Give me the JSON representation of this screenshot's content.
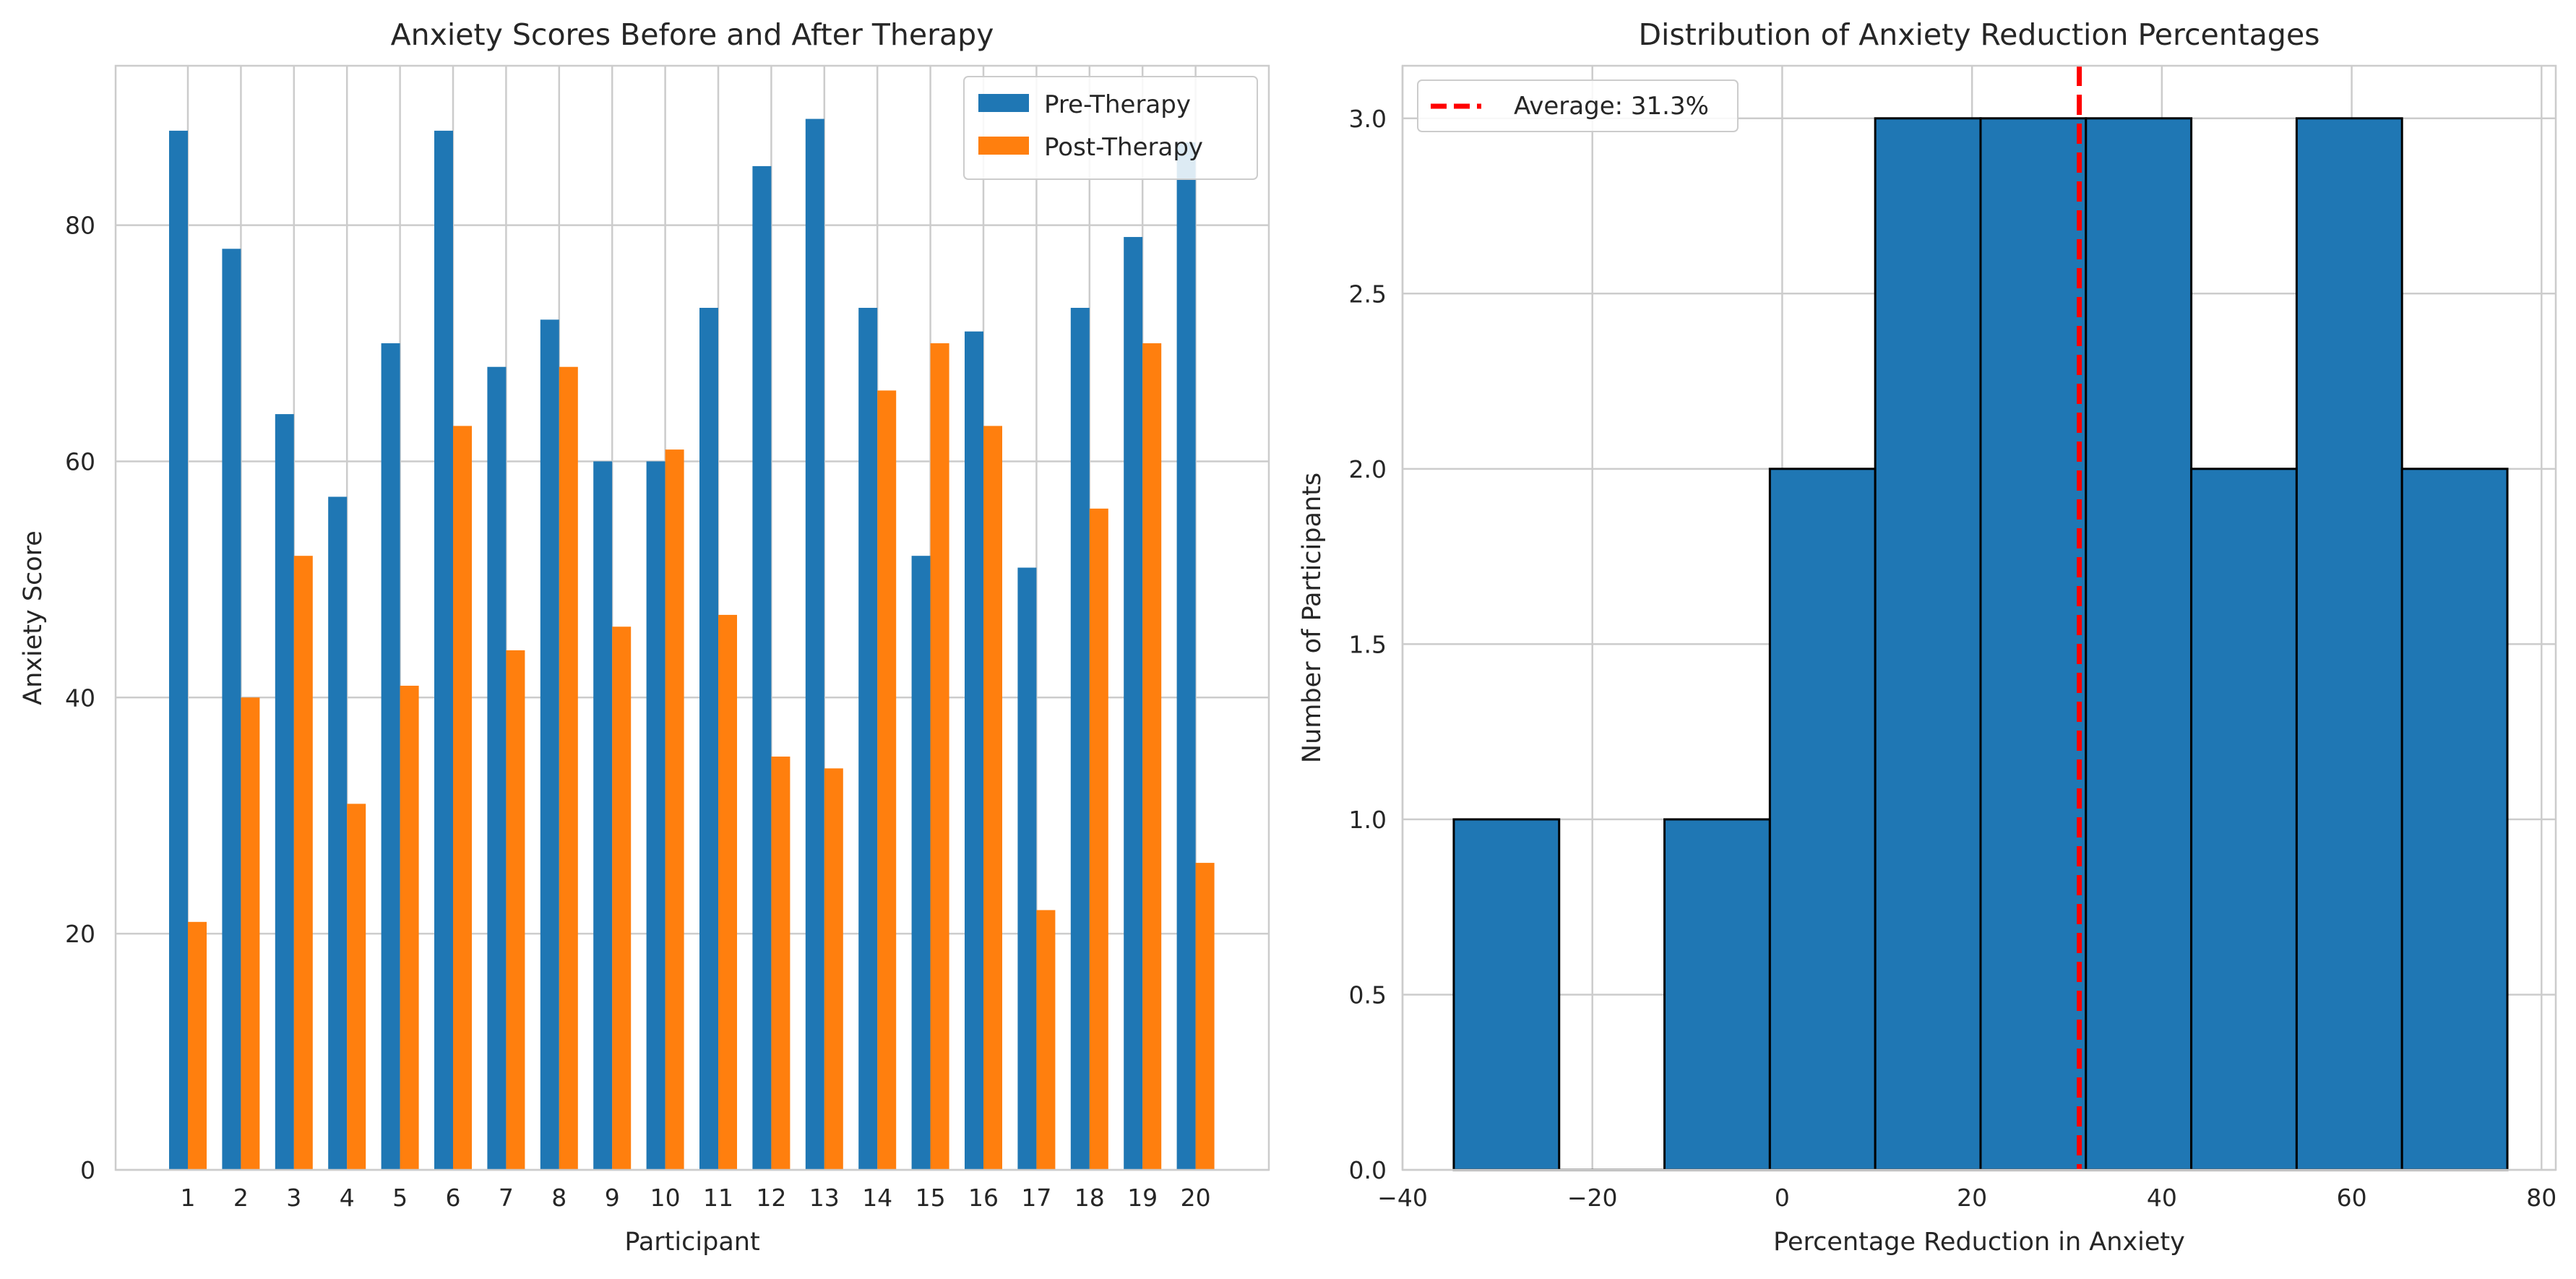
{
  "chart_data": [
    {
      "type": "bar",
      "title": "Anxiety Scores Before and After Therapy",
      "xlabel": "Participant",
      "ylabel": "Anxiety Score",
      "categories": [
        "1",
        "2",
        "3",
        "4",
        "5",
        "6",
        "7",
        "8",
        "9",
        "10",
        "11",
        "12",
        "13",
        "14",
        "15",
        "16",
        "17",
        "18",
        "19",
        "20"
      ],
      "series": [
        {
          "name": "Pre-Therapy",
          "color": "#1f77b4",
          "values": [
            88,
            78,
            64,
            57,
            70,
            88,
            68,
            72,
            60,
            60,
            73,
            85,
            89,
            73,
            52,
            71,
            51,
            73,
            79,
            87
          ]
        },
        {
          "name": "Post-Therapy",
          "color": "#ff7f0e",
          "values": [
            21,
            40,
            52,
            31,
            41,
            63,
            44,
            68,
            46,
            61,
            47,
            35,
            34,
            66,
            70,
            63,
            22,
            56,
            70,
            26
          ]
        }
      ],
      "ylim": [
        0,
        93.5
      ],
      "yticks": [
        0,
        20,
        40,
        60,
        80
      ],
      "grid": true,
      "legend": "top-right"
    },
    {
      "type": "histogram",
      "title": "Distribution of Anxiety Reduction Percentages",
      "xlabel": "Percentage Reduction in Anxiety",
      "ylabel": "Number of Participants",
      "bin_edges": [
        -34.6,
        -23.5,
        -12.4,
        -1.3,
        9.8,
        20.9,
        32.0,
        43.1,
        54.2,
        65.3,
        76.4
      ],
      "counts": [
        1,
        0,
        1,
        2,
        3,
        3,
        3,
        2,
        3,
        2
      ],
      "bar_color": "#1f77b4",
      "edge_color": "#000000",
      "xlim": [
        -40,
        81.5
      ],
      "ylim": [
        0,
        3.15
      ],
      "xticks": [
        -40,
        -20,
        0,
        20,
        40,
        60,
        80
      ],
      "xtick_labels": [
        "−40",
        "−20",
        "0",
        "20",
        "40",
        "60",
        "80"
      ],
      "yticks": [
        0.0,
        0.5,
        1.0,
        1.5,
        2.0,
        2.5,
        3.0
      ],
      "ytick_labels": [
        "0.0",
        "0.5",
        "1.0",
        "1.5",
        "2.0",
        "2.5",
        "3.0"
      ],
      "reference_line": {
        "x": 31.3,
        "color": "#ff0000",
        "style": "dashed",
        "label": "Average: 31.3%"
      },
      "grid": true,
      "legend": "top-left"
    }
  ]
}
